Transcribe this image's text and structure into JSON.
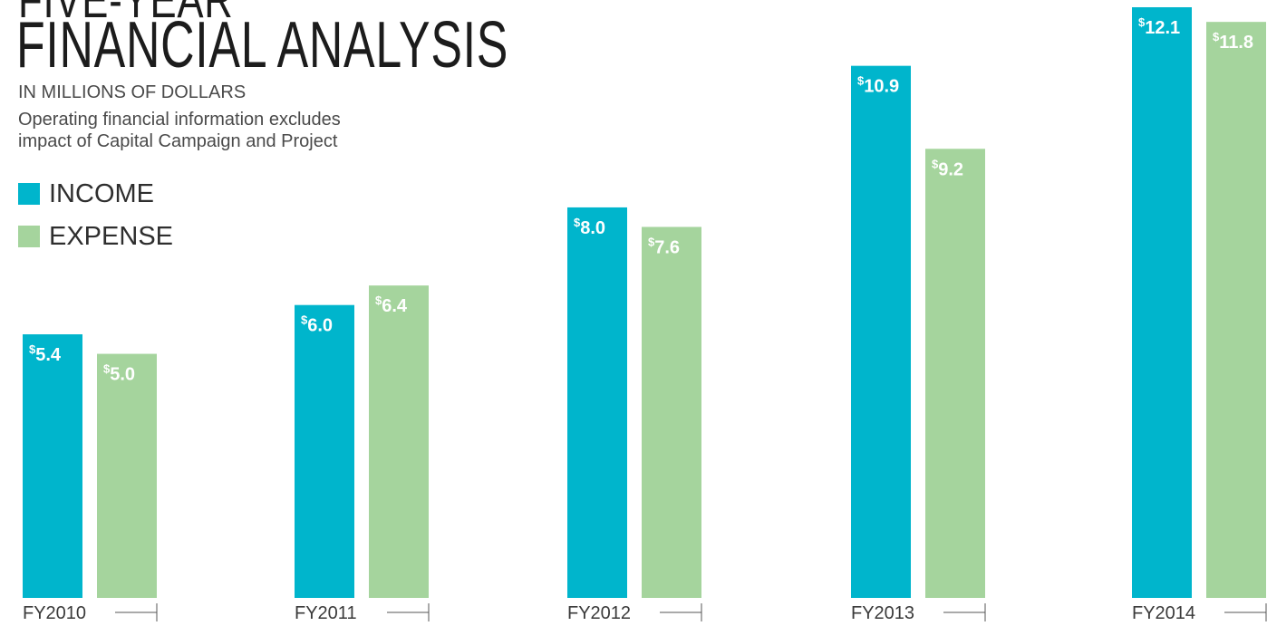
{
  "colors": {
    "income": "#00b5cc",
    "expense": "#a5d49d",
    "label_text": "#ffffff",
    "axis_text": "#3a3a3a",
    "axis_line": "#555555"
  },
  "chart_data": {
    "type": "bar",
    "title_top": "FIVE-YEAR",
    "title": "FINANCIAL ANALYSIS",
    "subtitle": "IN MILLIONS OF DOLLARS",
    "note_line_1": "Operating financial information excludes",
    "note_line_2": "impact of Capital Campaign and Project",
    "categories": [
      "FY2010",
      "FY2011",
      "FY2012",
      "FY2013",
      "FY2014"
    ],
    "series": [
      {
        "name": "INCOME",
        "values": [
          5.4,
          6.0,
          8.0,
          10.9,
          12.1
        ],
        "labels": [
          "5.4",
          "6.0",
          "8.0",
          "10.9",
          "12.1"
        ]
      },
      {
        "name": "EXPENSE",
        "values": [
          5.0,
          6.4,
          7.6,
          9.2,
          11.8
        ],
        "labels": [
          "5.0",
          "6.4",
          "7.6",
          "9.2",
          "11.8"
        ]
      }
    ],
    "value_prefix": "$",
    "ylim": [
      0,
      12.1
    ],
    "grid": false,
    "legend": "top-left"
  }
}
